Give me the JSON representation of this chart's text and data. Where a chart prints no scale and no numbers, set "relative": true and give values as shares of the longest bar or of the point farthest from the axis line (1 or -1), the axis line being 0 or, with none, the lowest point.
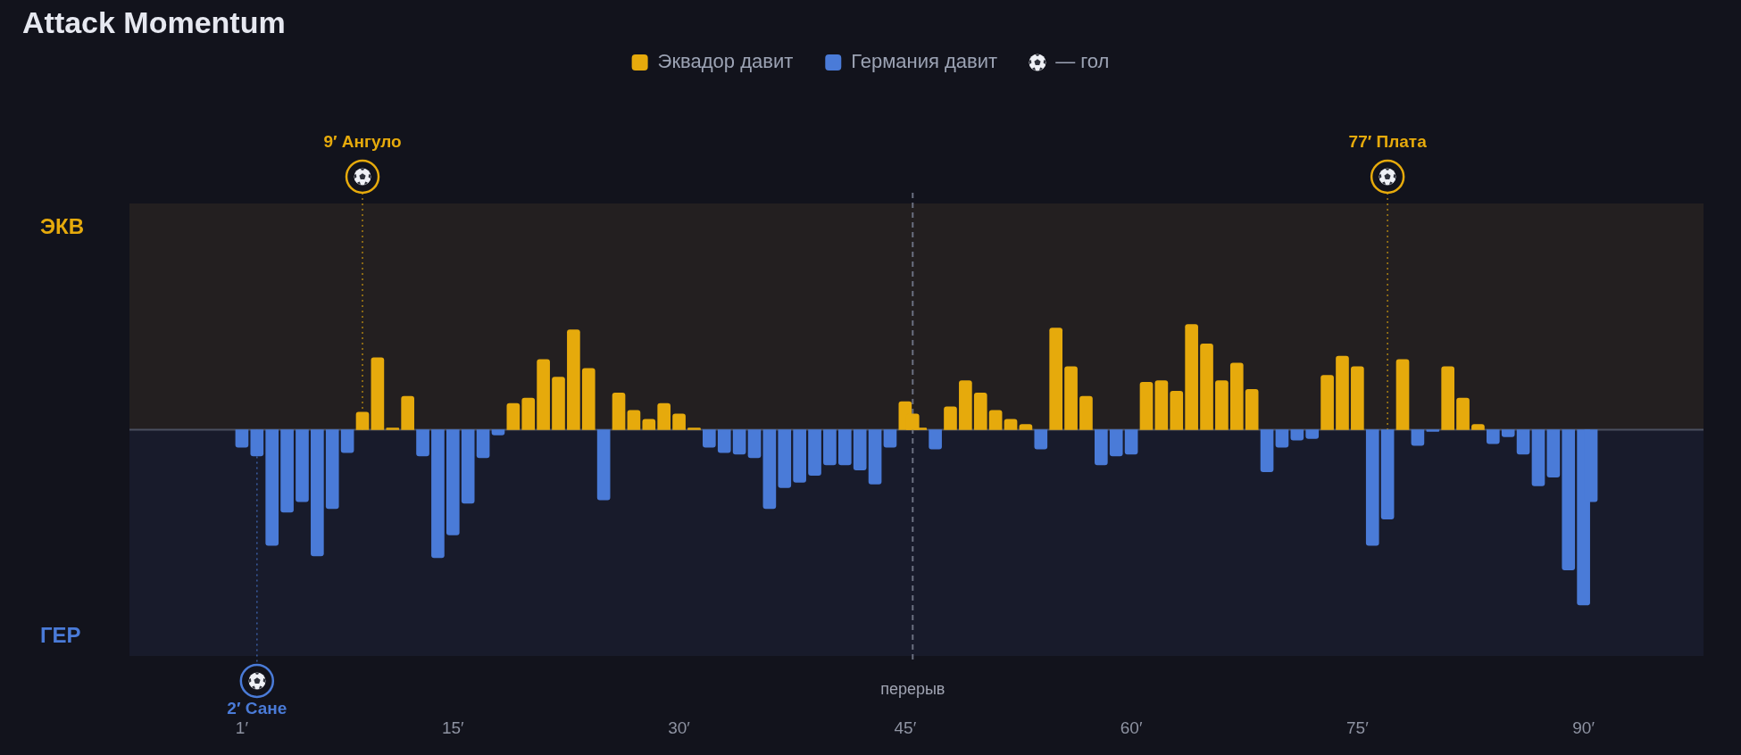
{
  "chart_data": {
    "type": "bar",
    "title": "Attack Momentum",
    "relative": true,
    "x": [
      1,
      2,
      3,
      4,
      5,
      6,
      7,
      8,
      9,
      10,
      11,
      12,
      13,
      14,
      15,
      16,
      17,
      18,
      19,
      20,
      21,
      22,
      23,
      24,
      25,
      26,
      27,
      28,
      29,
      30,
      31,
      32,
      33,
      34,
      35,
      36,
      37,
      38,
      39,
      40,
      41,
      42,
      43,
      44,
      45,
      45.5,
      46,
      47,
      48,
      49,
      50,
      51,
      52,
      53,
      54,
      55,
      56,
      57,
      58,
      59,
      60,
      61,
      62,
      63,
      64,
      65,
      66,
      67,
      68,
      69,
      70,
      71,
      72,
      73,
      74,
      75,
      76,
      77,
      78,
      79,
      80,
      81,
      82,
      83,
      84,
      85,
      86,
      87,
      88,
      89,
      90,
      90.5
    ],
    "series": [
      {
        "name": "Эквадор давит",
        "color": "#e6aa0c",
        "values": [
          null,
          null,
          null,
          null,
          null,
          null,
          null,
          null,
          0.1,
          0.41,
          0.01,
          0.19,
          null,
          null,
          null,
          null,
          null,
          null,
          0.15,
          0.18,
          0.4,
          0.3,
          0.57,
          0.35,
          null,
          0.21,
          0.11,
          0.06,
          0.15,
          0.09,
          0.01,
          null,
          null,
          null,
          null,
          null,
          null,
          null,
          null,
          null,
          null,
          null,
          null,
          null,
          0.16,
          0.09,
          0.01,
          null,
          0.13,
          0.28,
          0.21,
          0.11,
          0.06,
          0.03,
          null,
          0.58,
          0.36,
          0.19,
          null,
          null,
          null,
          0.27,
          0.28,
          0.22,
          0.6,
          0.49,
          0.28,
          0.38,
          0.23,
          null,
          null,
          null,
          null,
          0.31,
          0.42,
          0.36,
          null,
          null,
          0.4,
          null,
          null,
          0.36,
          0.18,
          0.03,
          null,
          null,
          null,
          null,
          null,
          null,
          null,
          null
        ]
      },
      {
        "name": "Германия давит",
        "color": "#4a7bd8",
        "values": [
          -0.1,
          -0.15,
          -0.66,
          -0.47,
          -0.41,
          -0.72,
          -0.45,
          -0.13,
          null,
          null,
          null,
          null,
          -0.15,
          -0.73,
          -0.6,
          -0.42,
          -0.16,
          -0.03,
          null,
          null,
          null,
          null,
          null,
          null,
          -0.4,
          null,
          null,
          null,
          null,
          null,
          null,
          -0.1,
          -0.13,
          -0.14,
          -0.16,
          -0.45,
          -0.33,
          -0.3,
          -0.26,
          -0.2,
          -0.2,
          -0.23,
          -0.31,
          -0.1,
          null,
          null,
          null,
          -0.11,
          null,
          null,
          null,
          null,
          null,
          null,
          -0.11,
          null,
          null,
          null,
          -0.2,
          -0.15,
          -0.14,
          null,
          null,
          null,
          null,
          null,
          null,
          null,
          null,
          -0.24,
          -0.1,
          -0.06,
          -0.05,
          null,
          null,
          null,
          -0.66,
          -0.51,
          null,
          -0.09,
          -0.01,
          null,
          null,
          null,
          -0.08,
          -0.04,
          -0.14,
          -0.32,
          -0.27,
          -0.8,
          -1.0,
          -0.41
        ]
      }
    ],
    "xlim": [
      1,
      90.5
    ],
    "xticks": [
      {
        "value": 1,
        "label": "1′"
      },
      {
        "value": 15,
        "label": "15′"
      },
      {
        "value": 30,
        "label": "30′"
      },
      {
        "value": 45,
        "label": "45′"
      },
      {
        "value": 60,
        "label": "60′"
      },
      {
        "value": 75,
        "label": "75′"
      },
      {
        "value": 90,
        "label": "90′"
      }
    ],
    "bands": [
      {
        "axis": "y",
        "from": 0,
        "to": 1.29,
        "label": "ЭКВ",
        "color": "#231f20"
      },
      {
        "axis": "y",
        "from": -1.29,
        "to": 0,
        "label": "ГЕР",
        "color": "#181b2b"
      }
    ],
    "ref_lines": [
      {
        "axis": "x",
        "value": 2,
        "label": "2′ Сане",
        "color": "#4a7bd8",
        "line_style": "dotted"
      },
      {
        "axis": "x",
        "value": 9,
        "label": "9′ Ангуло",
        "color": "#e6aa0c",
        "line_style": "dotted"
      },
      {
        "axis": "x",
        "value": 45.5,
        "label": "перерыв",
        "color": "#6b7081",
        "line_style": "dashed"
      },
      {
        "axis": "x",
        "value": 77,
        "label": "77′ Плата",
        "color": "#e6aa0c",
        "line_style": "dotted"
      }
    ],
    "annotations": [
      "— гол"
    ],
    "legend": "top"
  }
}
